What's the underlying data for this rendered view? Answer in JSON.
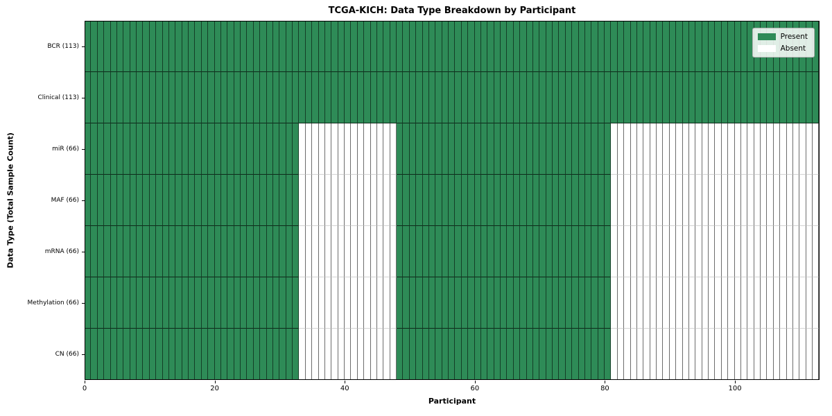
{
  "chart_data": {
    "type": "heatmap",
    "title": "TCGA-KICH: Data Type Breakdown by Participant",
    "xlabel": "Participant",
    "ylabel": "Data Type (Total Sample Count)",
    "n_participants": 113,
    "xlim": [
      0,
      113
    ],
    "x_ticks": [
      0,
      20,
      40,
      60,
      80,
      100
    ],
    "grid": false,
    "rows": [
      {
        "label": "BCR (113)",
        "total": 113,
        "present_ranges": [
          [
            0,
            113
          ]
        ]
      },
      {
        "label": "Clinical (113)",
        "total": 113,
        "present_ranges": [
          [
            0,
            113
          ]
        ]
      },
      {
        "label": "miR (66)",
        "total": 66,
        "present_ranges": [
          [
            0,
            33
          ],
          [
            48,
            81
          ]
        ]
      },
      {
        "label": "MAF (66)",
        "total": 66,
        "present_ranges": [
          [
            0,
            33
          ],
          [
            48,
            81
          ]
        ]
      },
      {
        "label": "mRNA (66)",
        "total": 66,
        "present_ranges": [
          [
            0,
            33
          ],
          [
            48,
            81
          ]
        ]
      },
      {
        "label": "Methylation (66)",
        "total": 66,
        "present_ranges": [
          [
            0,
            33
          ],
          [
            48,
            81
          ]
        ]
      },
      {
        "label": "CN (66)",
        "total": 66,
        "present_ranges": [
          [
            0,
            33
          ],
          [
            48,
            81
          ]
        ]
      }
    ],
    "legend": [
      {
        "label": "Present",
        "color": "#2e8b57"
      },
      {
        "label": "Absent",
        "color": "#ffffff"
      }
    ],
    "legend_position": "upper right",
    "colors": {
      "present": "#2e8b57",
      "absent": "#ffffff"
    }
  }
}
